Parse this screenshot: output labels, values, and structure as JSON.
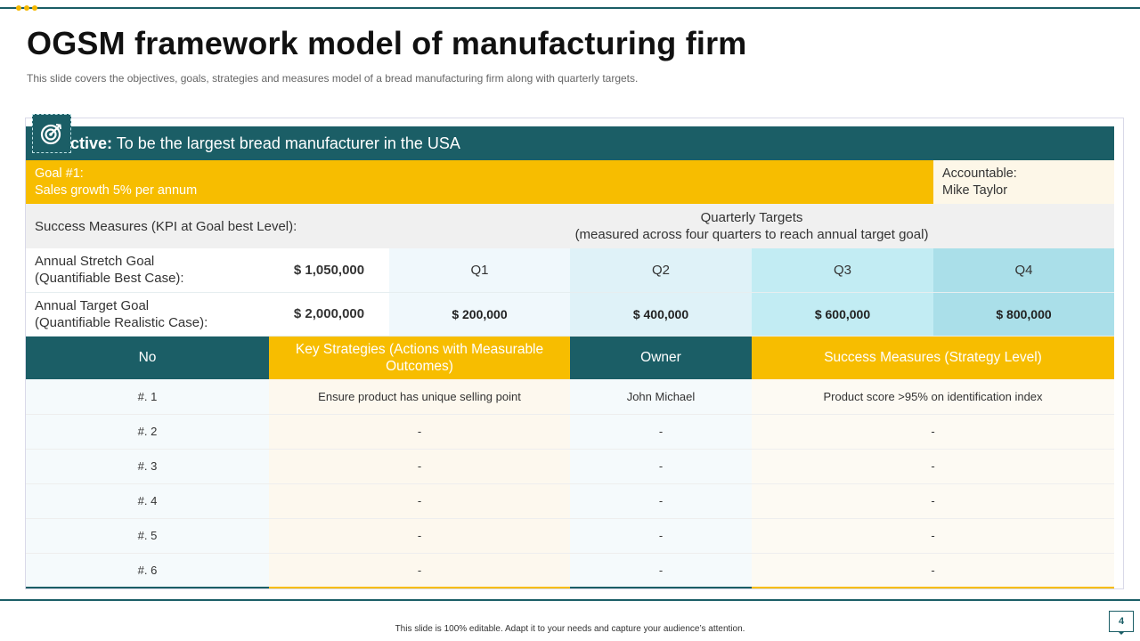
{
  "slide": {
    "title": "OGSM framework model of manufacturing firm",
    "subtitle": "This slide covers the objectives, goals, strategies and measures model of a bread manufacturing firm along with quarterly targets.",
    "footer": "This slide is 100% editable. Adapt it to your needs and capture your audience’s attention.",
    "page_number": "4",
    "icon": "target-icon",
    "colors": {
      "teal": "#1b5e66",
      "yellow": "#f7bd00"
    }
  },
  "objective": {
    "label": "Objective:",
    "text": "To be the largest bread manufacturer in the USA"
  },
  "goal": {
    "line1": "Goal #1:",
    "line2": "Sales growth 5% per annum",
    "accountable_label": "Accountable:",
    "accountable_name": "Mike Taylor"
  },
  "success_measures": {
    "label": "Success Measures (KPI at Goal best Level):",
    "quarterly_title": "Quarterly Targets",
    "quarterly_sub": "(measured across four quarters to reach annual target goal)"
  },
  "kpis": [
    {
      "label_line1": "Annual Stretch Goal",
      "label_line2": "(Quantifiable Best Case):",
      "value": "$ 1,050,000",
      "q1": "Q1",
      "q2": "Q2",
      "q3": "Q3",
      "q4": "Q4"
    },
    {
      "label_line1": "Annual Target Goal",
      "label_line2": "(Quantifiable Realistic Case):",
      "value": "$ 2,000,000",
      "q1": "$ 200,000",
      "q2": "$ 400,000",
      "q3": "$ 600,000",
      "q4": "$ 800,000"
    }
  ],
  "strategy_table": {
    "headers": {
      "no": "No",
      "strategies": "Key Strategies (Actions with Measurable Outcomes)",
      "owner": "Owner",
      "measures": "Success Measures (Strategy Level)"
    },
    "rows": [
      {
        "no": "#. 1",
        "strategy": "Ensure product has unique selling point",
        "owner": "John Michael",
        "measure": "Product score >95% on identification index"
      },
      {
        "no": "#. 2",
        "strategy": "-",
        "owner": "-",
        "measure": "-"
      },
      {
        "no": "#. 3",
        "strategy": "-",
        "owner": "-",
        "measure": "-"
      },
      {
        "no": "#. 4",
        "strategy": "-",
        "owner": "-",
        "measure": "-"
      },
      {
        "no": "#. 5",
        "strategy": "-",
        "owner": "-",
        "measure": "-"
      },
      {
        "no": "#. 6",
        "strategy": "-",
        "owner": "-",
        "measure": "-"
      }
    ]
  }
}
